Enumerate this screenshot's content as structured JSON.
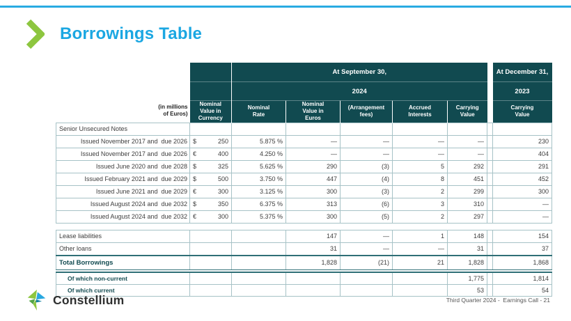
{
  "page": {
    "title": "Borrowings Table",
    "footer": "Third Quarter 2024 -  Earnings Call - 21",
    "logo_text": "Constellium",
    "colors": {
      "accent_cyan": "#29ABE2",
      "chevron_green": "#8DC63F",
      "header_teal": "#114A50",
      "strong_border_teal": "#2F6F76",
      "light_border": "#A6C2C6"
    }
  },
  "table": {
    "unit_note": "(in millions of Euros)",
    "header": {
      "september_banner": "At September 30,",
      "september_year": "2024",
      "december_banner": "At December 31,",
      "december_year": "2023",
      "columns": [
        "Nominal Value in Currency",
        "Nominal Rate",
        "Nominal Value in Euros",
        "(Arrangement fees)",
        "Accrued Interests",
        "Carrying Value",
        "Carrying Value"
      ]
    },
    "rows": [
      {
        "kind": "section",
        "label": "Senior Unsecured Notes"
      },
      {
        "kind": "note",
        "label": "Issued November 2017 and  due 2026",
        "sym": "$",
        "nominal": "250",
        "rate": "5.875 %",
        "euros": "—",
        "fees": "—",
        "accrued": "—",
        "carrying": "—",
        "dec": "230"
      },
      {
        "kind": "note",
        "label": "Issued November 2017 and  due 2026",
        "sym": "€",
        "nominal": "400",
        "rate": "4.250 %",
        "euros": "—",
        "fees": "—",
        "accrued": "—",
        "carrying": "—",
        "dec": "404"
      },
      {
        "kind": "note",
        "label": "Issued June 2020 and  due 2028",
        "sym": "$",
        "nominal": "325",
        "rate": "5.625 %",
        "euros": "290",
        "fees": "(3)",
        "accrued": "5",
        "carrying": "292",
        "dec": "291"
      },
      {
        "kind": "note",
        "label": "Issued February 2021 and  due 2029",
        "sym": "$",
        "nominal": "500",
        "rate": "3.750 %",
        "euros": "447",
        "fees": "(4)",
        "accrued": "8",
        "carrying": "451",
        "dec": "452"
      },
      {
        "kind": "note",
        "label": "Issued June 2021 and  due 2029",
        "sym": "€",
        "nominal": "300",
        "rate": "3.125 %",
        "euros": "300",
        "fees": "(3)",
        "accrued": "2",
        "carrying": "299",
        "dec": "300"
      },
      {
        "kind": "note",
        "label": "Issued August 2024 and  due 2032",
        "sym": "$",
        "nominal": "350",
        "rate": "6.375 %",
        "euros": "313",
        "fees": "(6)",
        "accrued": "3",
        "carrying": "310",
        "dec": "—"
      },
      {
        "kind": "note",
        "label": "Issued August 2024 and  due 2032",
        "sym": "€",
        "nominal": "300",
        "rate": "5.375 %",
        "euros": "300",
        "fees": "(5)",
        "accrued": "2",
        "carrying": "297",
        "dec": "—"
      },
      {
        "kind": "gap"
      },
      {
        "kind": "normal",
        "label": "Lease liabilities",
        "euros": "147",
        "fees": "—",
        "accrued": "1",
        "carrying": "148",
        "dec": "154"
      },
      {
        "kind": "normal",
        "label": "Other loans",
        "euros": "31",
        "fees": "—",
        "accrued": "—",
        "carrying": "31",
        "dec": "37"
      },
      {
        "kind": "total",
        "label": "Total Borrowings",
        "euros": "1,828",
        "fees": "(21)",
        "accrued": "21",
        "carrying": "1,828",
        "dec": "1,868"
      },
      {
        "kind": "dbl"
      },
      {
        "kind": "ofwhich",
        "label": "Of which non-current",
        "carrying": "1,775",
        "dec": "1,814"
      },
      {
        "kind": "ofwhich",
        "label": "Of which current",
        "carrying": "53",
        "dec": "54"
      }
    ]
  }
}
